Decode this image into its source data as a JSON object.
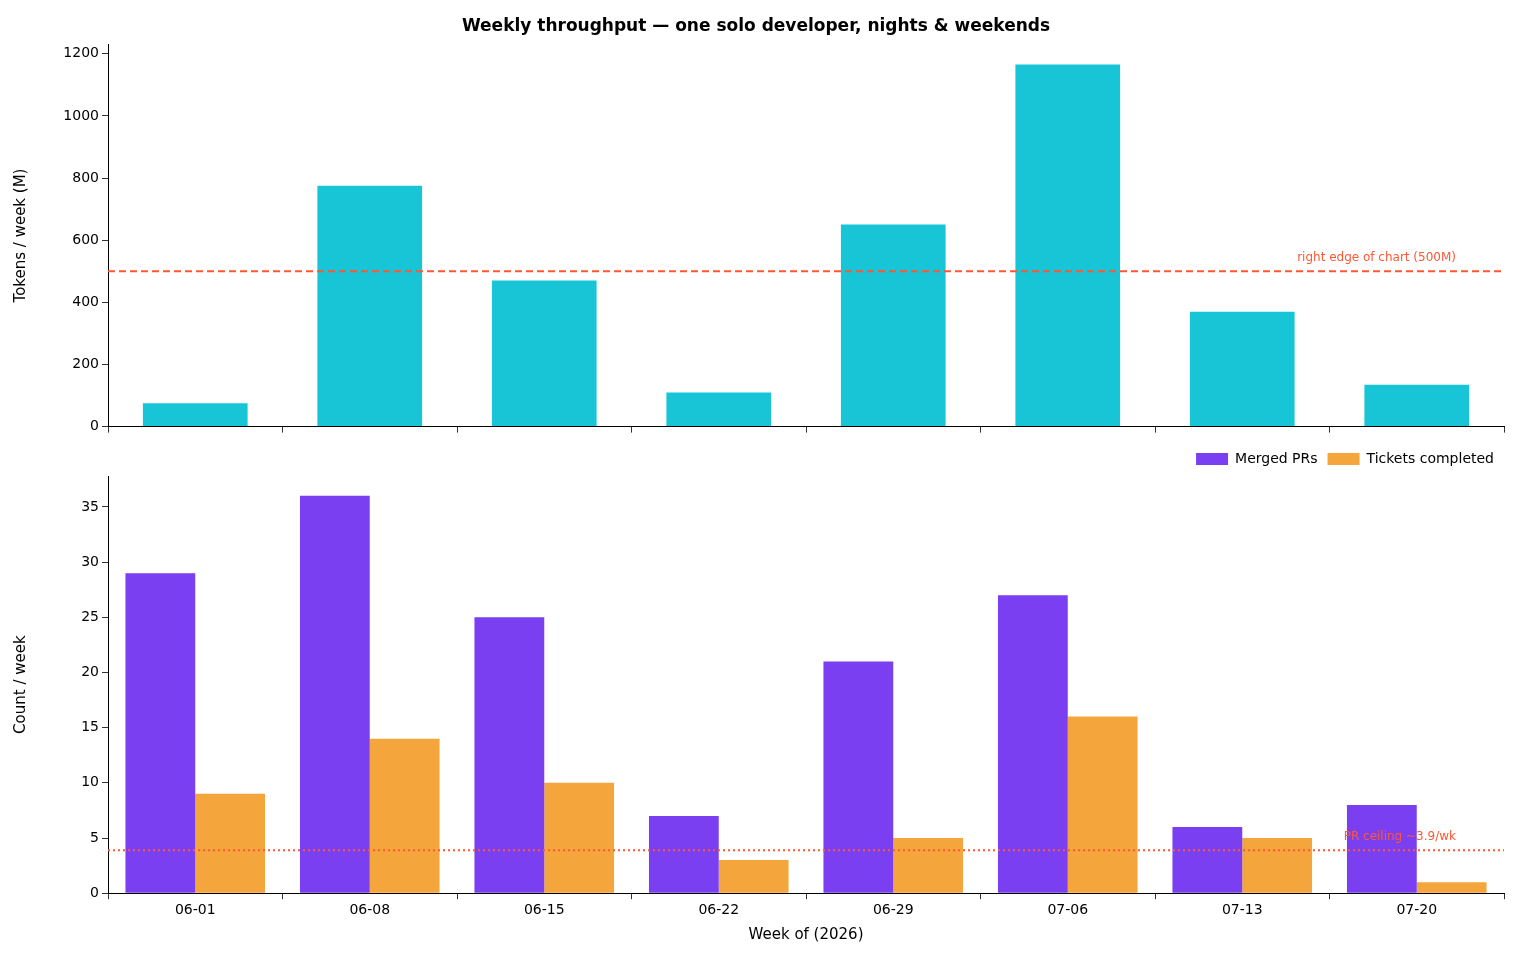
{
  "chart_data": [
    {
      "type": "bar",
      "title": "Weekly throughput — one solo developer, nights & weekends",
      "ylabel": "Tokens / week (M)",
      "categories": [
        null,
        null,
        null,
        null,
        null,
        null,
        null,
        null
      ],
      "values": [
        75,
        775,
        470,
        110,
        650,
        1165,
        370,
        135
      ],
      "color": "#17c5d6",
      "ylim": [
        0,
        1230
      ],
      "yticks": [
        0,
        200,
        400,
        600,
        800,
        1000,
        1200
      ],
      "grid": false,
      "tick_labels": "y",
      "ref_lines": [
        {
          "axis": "y",
          "value": 500,
          "label": "right edge of chart (500M)",
          "color": "#ff5733",
          "line_style": "dashed"
        }
      ]
    },
    {
      "type": "bar",
      "xlabel": "Week of (2026)",
      "ylabel": "Count / week",
      "categories": [
        "06-01",
        "06-08",
        "06-15",
        "06-22",
        "06-29",
        "07-06",
        "07-13",
        "07-20"
      ],
      "series": [
        {
          "name": "Merged PRs",
          "color": "#7a3ff0",
          "values": [
            29,
            36,
            25,
            7,
            21,
            27,
            6,
            8
          ]
        },
        {
          "name": "Tickets completed",
          "color": "#f4a53b",
          "values": [
            9,
            14,
            10,
            3,
            5,
            16,
            5,
            1
          ]
        }
      ],
      "ylim": [
        0,
        37.8
      ],
      "yticks": [
        0,
        5,
        10,
        15,
        20,
        25,
        30,
        35
      ],
      "grid": false,
      "legend": "top right",
      "ref_lines": [
        {
          "axis": "y",
          "value": 3.9,
          "label": "PR ceiling ~3.9/wk",
          "color": "#ff5733",
          "line_style": "dotted"
        }
      ]
    }
  ]
}
